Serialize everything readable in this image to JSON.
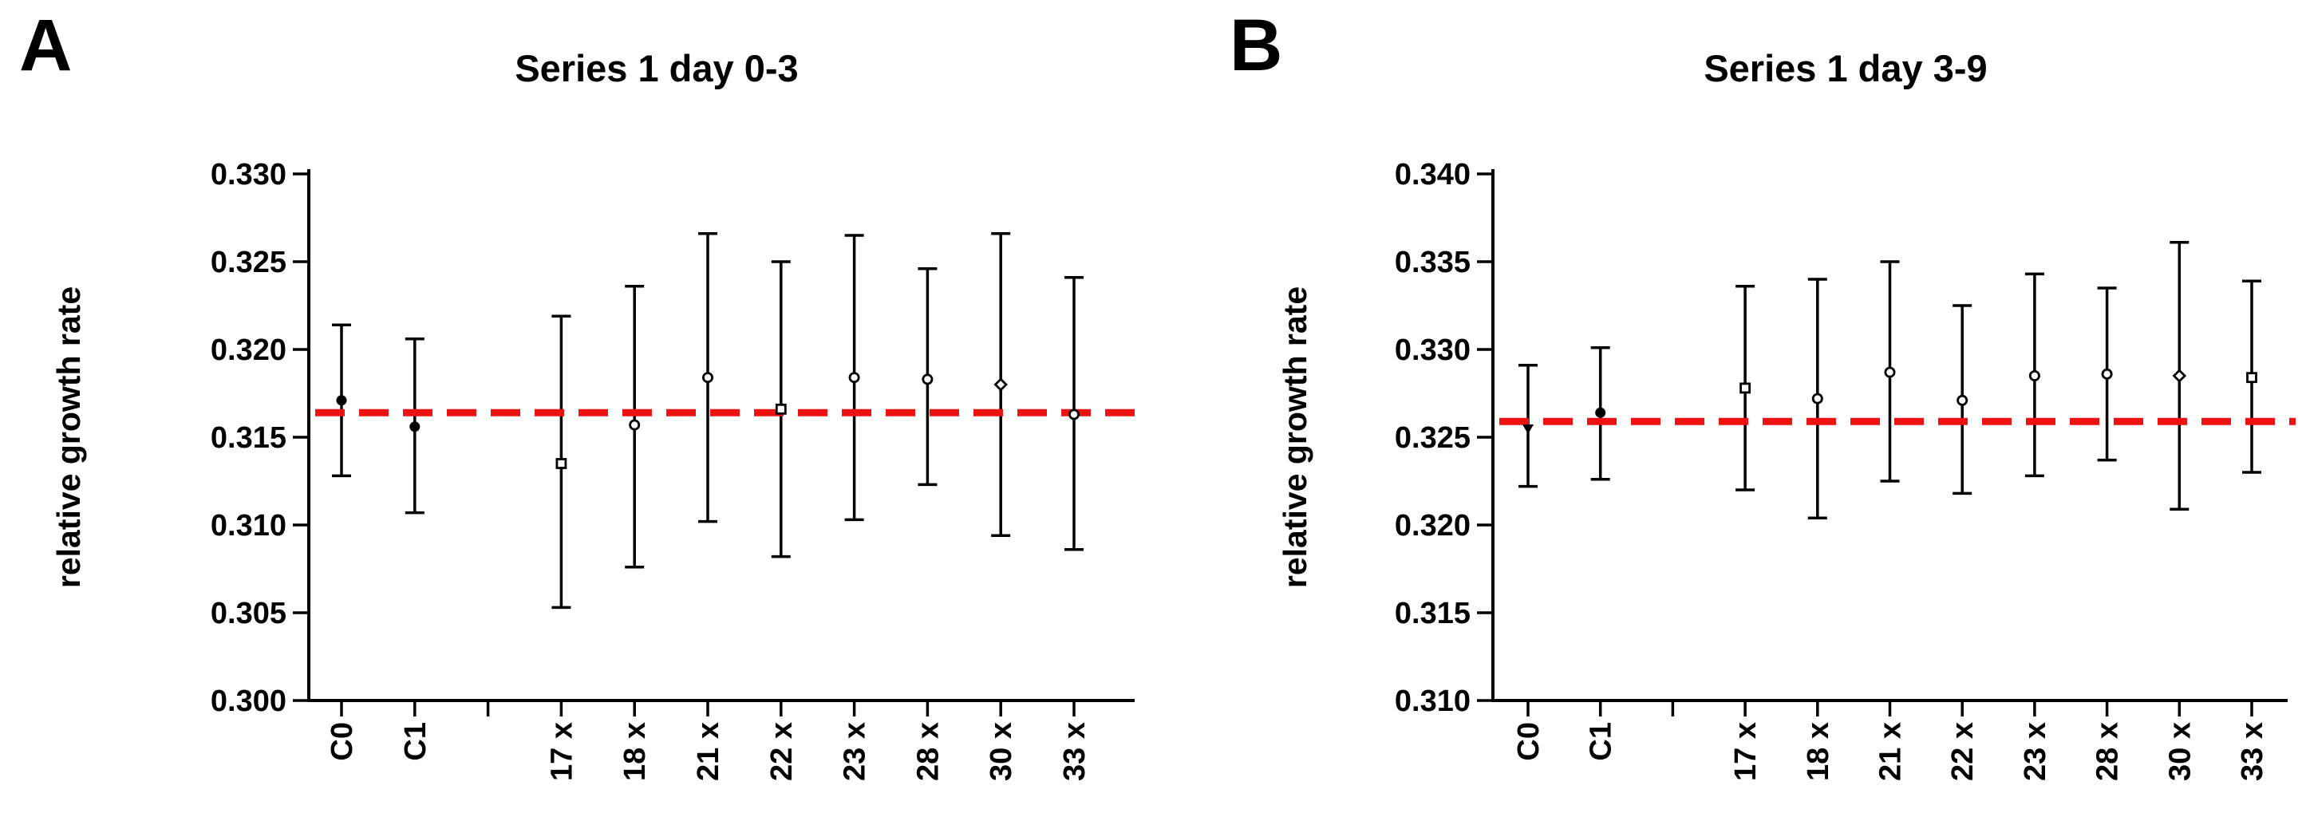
{
  "figure_type": "two-panel scatter plot with error bars",
  "colors": {
    "axis": "#000000",
    "marker": "#000000",
    "marker_open_fill": "#ffffff",
    "reference_line": "#ee1111",
    "text": "#000000",
    "background": "#ffffff"
  },
  "chart_data": [
    {
      "type": "scatter",
      "panel_label": "A",
      "title": "Series 1 day 0-3",
      "xlabel": "",
      "ylabel": "relative growth rate",
      "ylim": [
        0.3,
        0.33
      ],
      "ytick_step": 0.005,
      "ytick_labels": [
        "0.330",
        "0.325",
        "0.320",
        "0.315",
        "0.310",
        "0.305",
        "0.300"
      ],
      "x_slot_count": 11,
      "empty_slot": 2,
      "grid": false,
      "legend": "none",
      "reference_line": {
        "y": 0.3164,
        "style": "dashed",
        "color": "#ee1111"
      },
      "categories": [
        "C0",
        "C1",
        "17 x",
        "18 x",
        "21 x",
        "22 x",
        "23 x",
        "28 x",
        "30 x",
        "33 x"
      ],
      "points": [
        {
          "label": "C0",
          "slot": 0,
          "y": 0.3171,
          "y_lo": 0.3128,
          "y_hi": 0.3214,
          "marker": "filled-circle"
        },
        {
          "label": "C1",
          "slot": 1,
          "y": 0.3156,
          "y_lo": 0.3107,
          "y_hi": 0.3206,
          "marker": "filled-circle"
        },
        {
          "label": "17 x",
          "slot": 3,
          "y": 0.3135,
          "y_lo": 0.3053,
          "y_hi": 0.3219,
          "marker": "open-square"
        },
        {
          "label": "18 x",
          "slot": 4,
          "y": 0.3157,
          "y_lo": 0.3076,
          "y_hi": 0.3236,
          "marker": "open-circle"
        },
        {
          "label": "21 x",
          "slot": 5,
          "y": 0.3184,
          "y_lo": 0.3102,
          "y_hi": 0.3266,
          "marker": "open-circle"
        },
        {
          "label": "22 x",
          "slot": 6,
          "y": 0.3166,
          "y_lo": 0.3082,
          "y_hi": 0.325,
          "marker": "open-square"
        },
        {
          "label": "23 x",
          "slot": 7,
          "y": 0.3184,
          "y_lo": 0.3103,
          "y_hi": 0.3265,
          "marker": "open-circle"
        },
        {
          "label": "28 x",
          "slot": 8,
          "y": 0.3183,
          "y_lo": 0.3123,
          "y_hi": 0.3246,
          "marker": "open-circle"
        },
        {
          "label": "30 x",
          "slot": 9,
          "y": 0.318,
          "y_lo": 0.3094,
          "y_hi": 0.3266,
          "marker": "open-diamond"
        },
        {
          "label": "33 x",
          "slot": 10,
          "y": 0.3163,
          "y_lo": 0.3086,
          "y_hi": 0.3241,
          "marker": "open-circle"
        }
      ]
    },
    {
      "type": "scatter",
      "panel_label": "B",
      "title": "Series 1 day 3-9",
      "xlabel": "",
      "ylabel": "relative growth rate",
      "ylim": [
        0.31,
        0.34
      ],
      "ytick_step": 0.005,
      "ytick_labels": [
        "0.340",
        "0.335",
        "0.330",
        "0.325",
        "0.320",
        "0.315",
        "0.310"
      ],
      "x_slot_count": 11,
      "empty_slot": 2,
      "grid": false,
      "legend": "none",
      "reference_line": {
        "y": 0.3259,
        "style": "dashed",
        "color": "#ee1111"
      },
      "categories": [
        "C0",
        "C1",
        "17 x",
        "18 x",
        "21 x",
        "22 x",
        "23 x",
        "28 x",
        "30 x",
        "33 x"
      ],
      "points": [
        {
          "label": "C0",
          "slot": 0,
          "y": 0.3255,
          "y_lo": 0.3222,
          "y_hi": 0.3291,
          "marker": "filled-triangle-down"
        },
        {
          "label": "C1",
          "slot": 1,
          "y": 0.3264,
          "y_lo": 0.3226,
          "y_hi": 0.3301,
          "marker": "filled-circle"
        },
        {
          "label": "17 x",
          "slot": 3,
          "y": 0.3278,
          "y_lo": 0.322,
          "y_hi": 0.3336,
          "marker": "open-square"
        },
        {
          "label": "18 x",
          "slot": 4,
          "y": 0.3272,
          "y_lo": 0.3204,
          "y_hi": 0.334,
          "marker": "open-circle"
        },
        {
          "label": "21 x",
          "slot": 5,
          "y": 0.3287,
          "y_lo": 0.3225,
          "y_hi": 0.335,
          "marker": "open-circle"
        },
        {
          "label": "22 x",
          "slot": 6,
          "y": 0.3271,
          "y_lo": 0.3218,
          "y_hi": 0.3325,
          "marker": "open-circle"
        },
        {
          "label": "23 x",
          "slot": 7,
          "y": 0.3285,
          "y_lo": 0.3228,
          "y_hi": 0.3343,
          "marker": "open-circle"
        },
        {
          "label": "28 x",
          "slot": 8,
          "y": 0.3286,
          "y_lo": 0.3237,
          "y_hi": 0.3335,
          "marker": "open-circle"
        },
        {
          "label": "30 x",
          "slot": 9,
          "y": 0.3285,
          "y_lo": 0.3209,
          "y_hi": 0.3361,
          "marker": "open-diamond"
        },
        {
          "label": "33 x",
          "slot": 10,
          "y": 0.3284,
          "y_lo": 0.323,
          "y_hi": 0.3339,
          "marker": "open-square"
        }
      ]
    }
  ]
}
